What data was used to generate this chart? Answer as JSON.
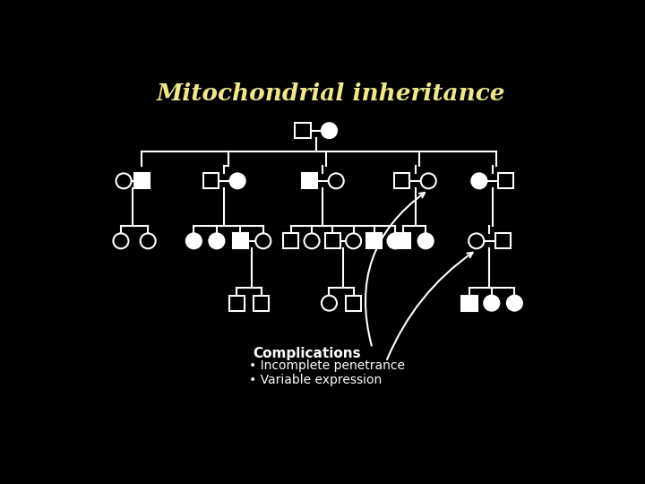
{
  "title": "Mitochondrial inheritance",
  "title_color": "#f0e68c",
  "bg_color": "#000000",
  "symbol_color": "#ffffff",
  "text_color": "#ffffff",
  "complications_title": "Complications",
  "complications_bullets": [
    "Incomplete penetrance",
    "Variable expression"
  ],
  "sz": 11,
  "lw": 1.5
}
